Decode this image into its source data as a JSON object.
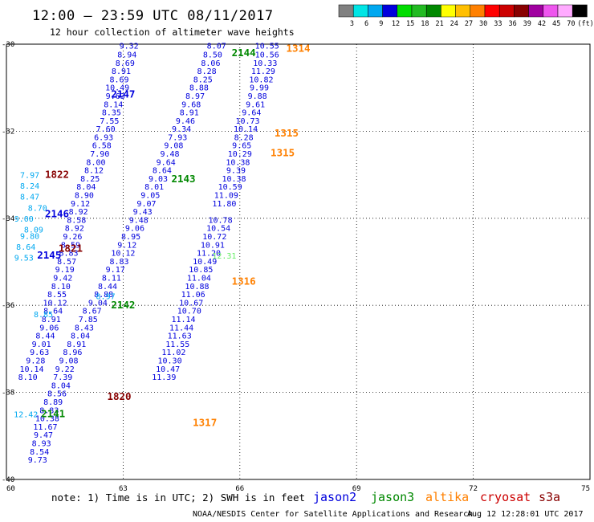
{
  "title": "12:00 – 23:59 UTC 08/11/2017",
  "subtitle": "12 hour collection of altimeter wave heights",
  "colorbar": {
    "colors": [
      "#808080",
      "#00e5e5",
      "#00a8f0",
      "#0000dd",
      "#00dd00",
      "#22bb22",
      "#008800",
      "#ffff00",
      "#ffbf00",
      "#ff8000",
      "#ff0000",
      "#cc0000",
      "#880000",
      "#a000a0",
      "#ee55ee",
      "#ffaaff",
      "#000000"
    ],
    "labels": [
      "3",
      "6",
      "9",
      "12",
      "15",
      "18",
      "21",
      "24",
      "27",
      "30",
      "33",
      "36",
      "39",
      "42",
      "45",
      "70",
      "(ft)"
    ]
  },
  "chart_data": {
    "type": "scatter",
    "title": "12:00 – 23:59 UTC 08/11/2017",
    "subtitle": "12 hour collection of altimeter wave heights",
    "xlabel": "",
    "ylabel": "",
    "xlim": [
      60,
      75
    ],
    "ylim": [
      -40,
      -30
    ],
    "x_ticks": [
      60,
      63,
      66,
      69,
      72,
      75
    ],
    "y_ticks": [
      -30,
      -32,
      -34,
      -36,
      -38,
      -40
    ],
    "x_tick_labels": [
      "60",
      "63",
      "66",
      "69",
      "72",
      "75"
    ],
    "y_tick_labels": [
      "-30",
      "-32",
      "-34",
      "-36",
      "-38",
      "-40"
    ],
    "grid": true,
    "series": [
      {
        "name": "jason2",
        "color": "#0000dd",
        "label_color": "#0000dd",
        "passes": [
          {
            "label": "2147",
            "x": 63.0,
            "y": -31.15
          },
          {
            "label": "2146",
            "x": 61.3,
            "y": -33.9
          },
          {
            "label": "2145",
            "x": 61.1,
            "y": -34.85
          }
        ],
        "points": [
          [
            63.15,
            -30.03,
            "9.32"
          ],
          [
            63.1,
            -30.23,
            "8.94"
          ],
          [
            63.05,
            -30.42,
            "8.69"
          ],
          [
            62.95,
            -30.61,
            "8.91"
          ],
          [
            62.9,
            -30.8,
            "8.69"
          ],
          [
            62.85,
            -30.99,
            "10.49"
          ],
          [
            62.8,
            -31.18,
            "9.63"
          ],
          [
            62.75,
            -31.37,
            "8.14"
          ],
          [
            62.7,
            -31.56,
            "8.35"
          ],
          [
            62.65,
            -31.75,
            "7.55"
          ],
          [
            62.55,
            -31.94,
            "7.60"
          ],
          [
            62.5,
            -32.13,
            "6.93"
          ],
          [
            62.45,
            -32.32,
            "6.58"
          ],
          [
            62.4,
            -32.51,
            "7.90"
          ],
          [
            62.3,
            -32.7,
            "8.00"
          ],
          [
            62.25,
            -32.89,
            "8.12"
          ],
          [
            62.15,
            -33.08,
            "8.25"
          ],
          [
            62.05,
            -33.27,
            "8.04"
          ],
          [
            62.0,
            -33.46,
            "8.90"
          ],
          [
            61.9,
            -33.65,
            "9.12"
          ],
          [
            61.85,
            -33.84,
            "8.92"
          ],
          [
            61.8,
            -34.03,
            "8.58"
          ],
          [
            61.75,
            -34.22,
            "8.92"
          ],
          [
            61.7,
            -34.41,
            "9.26"
          ],
          [
            61.65,
            -34.6,
            "8.59"
          ],
          [
            61.6,
            -34.79,
            "8.83"
          ],
          [
            61.55,
            -34.98,
            "8.57"
          ],
          [
            61.5,
            -35.17,
            "9.19"
          ],
          [
            61.45,
            -35.36,
            "9.42"
          ],
          [
            61.4,
            -35.55,
            "8.10"
          ],
          [
            61.3,
            -35.74,
            "8.55"
          ],
          [
            61.25,
            -35.93,
            "10.12"
          ],
          [
            61.2,
            -36.12,
            "8.64"
          ],
          [
            61.15,
            -36.31,
            "8.91"
          ],
          [
            61.1,
            -36.5,
            "9.06"
          ],
          [
            61.0,
            -36.69,
            "8.44"
          ],
          [
            60.9,
            -36.88,
            "9.01"
          ],
          [
            60.85,
            -37.07,
            "9.63"
          ],
          [
            60.75,
            -37.26,
            "9.28"
          ],
          [
            60.65,
            -37.45,
            "10.14"
          ],
          [
            60.55,
            -37.64,
            "8.10"
          ]
        ]
      },
      {
        "name": "jason2-b",
        "color": "#0000dd",
        "points": [
          [
            65.4,
            -30.03,
            "8.07"
          ],
          [
            65.3,
            -30.23,
            "8.50"
          ],
          [
            65.25,
            -30.42,
            "8.06"
          ],
          [
            65.15,
            -30.61,
            "8.28"
          ],
          [
            65.05,
            -30.8,
            "8.25"
          ],
          [
            64.95,
            -30.99,
            "8.88"
          ],
          [
            64.85,
            -31.18,
            "8.97"
          ],
          [
            64.75,
            -31.37,
            "9.68"
          ],
          [
            64.7,
            -31.56,
            "8.91"
          ],
          [
            64.6,
            -31.75,
            "9.46"
          ],
          [
            64.5,
            -31.94,
            "9.34"
          ],
          [
            64.4,
            -32.13,
            "7.93"
          ],
          [
            64.3,
            -32.32,
            "9.08"
          ],
          [
            64.2,
            -32.51,
            "9.48"
          ],
          [
            64.1,
            -32.7,
            "9.64"
          ],
          [
            64.0,
            -32.89,
            "8.64"
          ],
          [
            63.9,
            -33.08,
            "9.03"
          ],
          [
            63.8,
            -33.27,
            "8.01"
          ],
          [
            63.7,
            -33.46,
            "9.05"
          ],
          [
            63.6,
            -33.65,
            "9.07"
          ],
          [
            63.5,
            -33.84,
            "9.43"
          ],
          [
            63.4,
            -34.03,
            "9.48"
          ],
          [
            63.3,
            -34.22,
            "9.06"
          ],
          [
            63.2,
            -34.41,
            "8.95"
          ],
          [
            63.1,
            -34.6,
            "9.12"
          ],
          [
            63.0,
            -34.79,
            "10.12"
          ],
          [
            62.9,
            -34.98,
            "8.83"
          ],
          [
            62.8,
            -35.17,
            "9.17"
          ],
          [
            62.7,
            -35.36,
            "8.11"
          ],
          [
            62.6,
            -35.55,
            "8.44"
          ],
          [
            62.5,
            -35.74,
            "8.88"
          ],
          [
            62.35,
            -35.93,
            "9.04"
          ],
          [
            62.2,
            -36.12,
            "8.67"
          ],
          [
            62.1,
            -36.31,
            "7.85"
          ],
          [
            62.0,
            -36.5,
            "8.43"
          ],
          [
            61.9,
            -36.69,
            "8.04"
          ],
          [
            61.8,
            -36.88,
            "8.91"
          ],
          [
            61.7,
            -37.07,
            "8.96"
          ],
          [
            61.6,
            -37.26,
            "9.08"
          ],
          [
            61.5,
            -37.45,
            "9.22"
          ],
          [
            61.45,
            -37.64,
            "7.39"
          ],
          [
            61.4,
            -37.83,
            "8.04"
          ],
          [
            61.3,
            -38.02,
            "8.56"
          ],
          [
            61.2,
            -38.21,
            "8.89"
          ],
          [
            61.1,
            -38.4,
            "8.83"
          ],
          [
            61.05,
            -38.59,
            "10.38"
          ],
          [
            61.0,
            -38.78,
            "11.67"
          ],
          [
            60.95,
            -38.97,
            "9.47"
          ],
          [
            60.9,
            -39.16,
            "8.93"
          ],
          [
            60.85,
            -39.35,
            "8.54"
          ],
          [
            60.8,
            -39.54,
            "9.73"
          ]
        ]
      },
      {
        "name": "jason2-c",
        "color": "#0000dd",
        "points": [
          [
            66.7,
            -30.03,
            "10.55"
          ],
          [
            66.7,
            -30.23,
            "10.56"
          ],
          [
            66.65,
            -30.42,
            "10.33"
          ],
          [
            66.6,
            -30.61,
            "11.29"
          ],
          [
            66.55,
            -30.8,
            "10.82"
          ],
          [
            66.5,
            -30.99,
            "9.99"
          ],
          [
            66.45,
            -31.18,
            "9.88"
          ],
          [
            66.4,
            -31.37,
            "9.61"
          ],
          [
            66.3,
            -31.56,
            "9.64"
          ],
          [
            66.2,
            -31.75,
            "10.73"
          ],
          [
            66.15,
            -31.94,
            "10.14"
          ],
          [
            66.1,
            -32.13,
            "8.28"
          ],
          [
            66.05,
            -32.32,
            "9.65"
          ],
          [
            66.0,
            -32.51,
            "10.29"
          ],
          [
            65.95,
            -32.7,
            "10.38"
          ],
          [
            65.9,
            -32.89,
            "9.39"
          ],
          [
            65.85,
            -33.08,
            "10.38"
          ],
          [
            65.75,
            -33.27,
            "10.59"
          ],
          [
            65.65,
            -33.46,
            "11.09"
          ],
          [
            65.6,
            -33.65,
            "11.80"
          ],
          [
            65.5,
            -34.03,
            "10.78"
          ],
          [
            65.45,
            -34.22,
            "10.54"
          ],
          [
            65.35,
            -34.41,
            "10.72"
          ],
          [
            65.3,
            -34.6,
            "10.91"
          ],
          [
            65.2,
            -34.79,
            "11.20"
          ],
          [
            65.1,
            -34.98,
            "10.49"
          ],
          [
            65.0,
            -35.17,
            "10.85"
          ],
          [
            64.95,
            -35.36,
            "11.04"
          ],
          [
            64.9,
            -35.55,
            "10.88"
          ],
          [
            64.8,
            -35.74,
            "11.06"
          ],
          [
            64.75,
            -35.93,
            "10.67"
          ],
          [
            64.7,
            -36.12,
            "10.70"
          ],
          [
            64.55,
            -36.31,
            "11.14"
          ],
          [
            64.5,
            -36.5,
            "11.44"
          ],
          [
            64.45,
            -36.69,
            "11.63"
          ],
          [
            64.4,
            -36.88,
            "11.55"
          ],
          [
            64.3,
            -37.07,
            "11.02"
          ],
          [
            64.2,
            -37.26,
            "10.30"
          ],
          [
            64.15,
            -37.45,
            "10.47"
          ],
          [
            64.05,
            -37.64,
            "11.39"
          ]
        ]
      },
      {
        "name": "jason3",
        "color": "#00a8f0",
        "label_color": "#008800",
        "passes": [
          {
            "label": "2144",
            "x": 66.1,
            "y": -30.2
          },
          {
            "label": "2143",
            "x": 64.55,
            "y": -33.1
          },
          {
            "label": "2142",
            "x": 63.0,
            "y": -36.0
          },
          {
            "label": "2141",
            "x": 61.2,
            "y": -38.5
          }
        ],
        "points": [
          [
            60.6,
            -33.0,
            "7.97"
          ],
          [
            60.6,
            -33.25,
            "8.24"
          ],
          [
            60.6,
            -33.5,
            "8.47"
          ],
          [
            60.8,
            -33.75,
            "8.70"
          ],
          [
            60.45,
            -34.0,
            "9.00"
          ],
          [
            60.7,
            -34.25,
            "8.09"
          ],
          [
            60.6,
            -34.4,
            "9.80"
          ],
          [
            60.5,
            -34.65,
            "8.64"
          ],
          [
            60.45,
            -34.9,
            "9.53"
          ],
          [
            60.95,
            -36.2,
            "8.85"
          ],
          [
            62.55,
            -35.78,
            "8.97"
          ],
          [
            60.5,
            -38.5,
            "12.42"
          ]
        ]
      },
      {
        "name": "altika",
        "color": "#ffbf00",
        "label_color": "#ff8000",
        "passes": [
          {
            "label": "1314",
            "x": 67.5,
            "y": -30.1
          },
          {
            "label": "1315",
            "x": 67.2,
            "y": -32.05
          },
          {
            "label": "1315",
            "x": 67.1,
            "y": -32.5
          },
          {
            "label": "1316",
            "x": 66.1,
            "y": -35.45
          },
          {
            "label": "1317",
            "x": 65.1,
            "y": -38.7
          }
        ],
        "points": []
      },
      {
        "name": "cryosat",
        "color": "#880000",
        "label_color": "#880000",
        "passes": [
          {
            "label": "1822",
            "x": 61.3,
            "y": -33.0
          },
          {
            "label": "1821",
            "x": 61.65,
            "y": -34.7
          },
          {
            "label": "1820",
            "x": 62.9,
            "y": -38.1
          }
        ],
        "points": []
      },
      {
        "name": "s3a",
        "color": "#880000",
        "passes": [],
        "points": []
      },
      {
        "name": "jason2-green",
        "color": "#66ee66",
        "points": [
          [
            65.6,
            -34.85,
            "12.31"
          ]
        ]
      }
    ]
  },
  "note": "note: 1) Time is in UTC; 2) SWH is in feet",
  "legend": [
    {
      "label": "jason2",
      "color": "#0000dd"
    },
    {
      "label": "jason3",
      "color": "#008800"
    },
    {
      "label": "altika",
      "color": "#ff8000"
    },
    {
      "label": "cryosat",
      "color": "#cc0000"
    },
    {
      "label": "s3a",
      "color": "#880000"
    }
  ],
  "credit_left": "NOAA/NESDIS Center for Satellite Applications and Research",
  "credit_right": "Aug 12 12:28:01 UTC 2017"
}
